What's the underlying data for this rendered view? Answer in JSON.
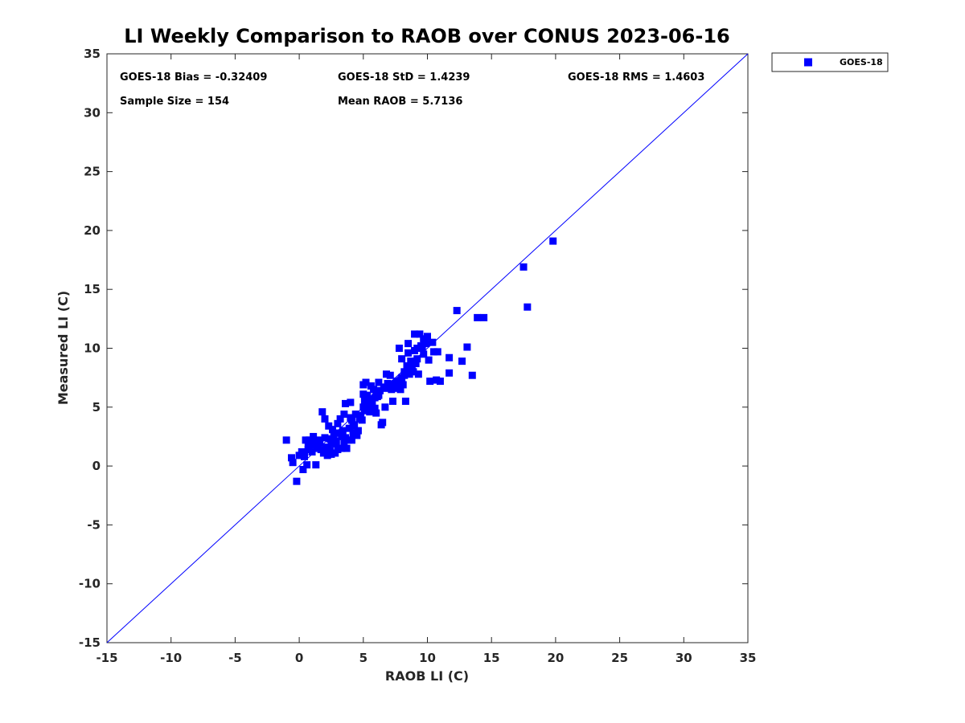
{
  "chart_data": {
    "type": "scatter",
    "title": "LI Weekly Comparison to RAOB over CONUS 2023-06-16",
    "xlabel": "RAOB LI (C)",
    "ylabel": "Measured LI (C)",
    "xlim": [
      -15,
      35
    ],
    "ylim": [
      -15,
      35
    ],
    "xticks": [
      -15,
      -10,
      -5,
      0,
      5,
      10,
      15,
      20,
      25,
      30,
      35
    ],
    "yticks": [
      -15,
      -10,
      -5,
      0,
      5,
      10,
      15,
      20,
      25,
      30,
      35
    ],
    "grid": false,
    "legend": {
      "position": "outside-top-right",
      "entries": [
        "GOES-18"
      ]
    },
    "reference_line": {
      "name": "1:1 line",
      "from": [
        -15,
        -15
      ],
      "to": [
        35,
        35
      ]
    },
    "annotations": [
      "GOES-18 Bias = -0.32409",
      "GOES-18 StD = 1.4239",
      "GOES-18 RMS = 1.4603",
      "Sample Size = 154",
      "Mean RAOB = 5.7136"
    ],
    "series": [
      {
        "name": "GOES-18",
        "color": "#0000ff",
        "marker": "square",
        "points": [
          [
            -1.0,
            2.2
          ],
          [
            -0.6,
            0.7
          ],
          [
            -0.5,
            0.3
          ],
          [
            -0.2,
            -1.3
          ],
          [
            0.0,
            0.9
          ],
          [
            0.2,
            1.2
          ],
          [
            0.3,
            -0.3
          ],
          [
            0.4,
            0.8
          ],
          [
            0.5,
            2.2
          ],
          [
            0.6,
            0.1
          ],
          [
            0.7,
            1.4
          ],
          [
            0.8,
            2.2
          ],
          [
            0.9,
            1.8
          ],
          [
            1.1,
            2.5
          ],
          [
            1.2,
            2.0
          ],
          [
            1.3,
            0.1
          ],
          [
            1.5,
            2.2
          ],
          [
            1.7,
            1.4
          ],
          [
            1.8,
            4.6
          ],
          [
            1.9,
            1.1
          ],
          [
            2.0,
            2.4
          ],
          [
            2.0,
            4.0
          ],
          [
            2.1,
            1.6
          ],
          [
            2.2,
            0.9
          ],
          [
            2.3,
            3.4
          ],
          [
            2.4,
            1.3
          ],
          [
            2.5,
            1.9
          ],
          [
            2.6,
            3.1
          ],
          [
            2.7,
            2.6
          ],
          [
            2.8,
            1.1
          ],
          [
            2.9,
            1.9
          ],
          [
            3.0,
            1.4
          ],
          [
            3.1,
            2.8
          ],
          [
            3.2,
            4.0
          ],
          [
            3.3,
            1.5
          ],
          [
            3.4,
            3.0
          ],
          [
            3.5,
            1.9
          ],
          [
            3.5,
            4.4
          ],
          [
            3.6,
            5.3
          ],
          [
            3.7,
            1.5
          ],
          [
            3.8,
            2.2
          ],
          [
            3.9,
            3.2
          ],
          [
            4.0,
            4.1
          ],
          [
            4.0,
            5.4
          ],
          [
            4.1,
            3.9
          ],
          [
            4.2,
            2.8
          ],
          [
            4.3,
            3.4
          ],
          [
            4.4,
            4.4
          ],
          [
            4.5,
            2.6
          ],
          [
            4.6,
            3.0
          ],
          [
            4.8,
            4.3
          ],
          [
            4.9,
            3.9
          ],
          [
            5.0,
            5.0
          ],
          [
            5.0,
            6.9
          ],
          [
            5.0,
            6.1
          ],
          [
            5.1,
            4.7
          ],
          [
            5.2,
            7.1
          ],
          [
            5.3,
            4.9
          ],
          [
            5.4,
            5.3
          ],
          [
            5.5,
            5.4
          ],
          [
            5.5,
            4.6
          ],
          [
            5.6,
            6.8
          ],
          [
            5.7,
            5.7
          ],
          [
            5.8,
            6.5
          ],
          [
            5.9,
            4.9
          ],
          [
            6.0,
            6.2
          ],
          [
            6.0,
            4.5
          ],
          [
            6.1,
            5.9
          ],
          [
            6.2,
            7.1
          ],
          [
            6.3,
            6.4
          ],
          [
            6.4,
            3.5
          ],
          [
            6.5,
            3.7
          ],
          [
            6.7,
            5.0
          ],
          [
            6.8,
            6.6
          ],
          [
            6.8,
            7.8
          ],
          [
            7.0,
            6.9
          ],
          [
            7.1,
            7.7
          ],
          [
            7.2,
            6.5
          ],
          [
            7.3,
            5.5
          ],
          [
            7.5,
            7.0
          ],
          [
            7.7,
            6.6
          ],
          [
            7.8,
            10.0
          ],
          [
            7.9,
            7.3
          ],
          [
            8.0,
            9.1
          ],
          [
            8.0,
            7.5
          ],
          [
            8.1,
            6.9
          ],
          [
            8.2,
            7.7
          ],
          [
            8.3,
            5.5
          ],
          [
            8.4,
            8.5
          ],
          [
            8.5,
            10.4
          ],
          [
            8.5,
            9.6
          ],
          [
            8.6,
            8.1
          ],
          [
            8.8,
            8.5
          ],
          [
            8.9,
            8.0
          ],
          [
            9.0,
            11.2
          ],
          [
            9.1,
            8.7
          ],
          [
            9.2,
            10.0
          ],
          [
            9.2,
            9.1
          ],
          [
            9.3,
            7.8
          ],
          [
            9.4,
            11.2
          ],
          [
            9.6,
            10.1
          ],
          [
            9.7,
            9.5
          ],
          [
            9.8,
            10.6
          ],
          [
            9.9,
            10.4
          ],
          [
            10.0,
            11.0
          ],
          [
            10.1,
            9.0
          ],
          [
            10.2,
            7.2
          ],
          [
            10.4,
            10.5
          ],
          [
            10.5,
            9.7
          ],
          [
            10.7,
            7.3
          ],
          [
            10.8,
            9.7
          ],
          [
            11.0,
            7.2
          ],
          [
            11.7,
            9.2
          ],
          [
            11.7,
            7.9
          ],
          [
            12.3,
            13.2
          ],
          [
            12.7,
            8.9
          ],
          [
            13.1,
            10.1
          ],
          [
            13.5,
            7.7
          ],
          [
            13.9,
            12.6
          ],
          [
            14.4,
            12.6
          ],
          [
            17.5,
            16.9
          ],
          [
            17.8,
            13.5
          ],
          [
            19.8,
            19.1
          ],
          [
            0.4,
            1.0
          ],
          [
            0.7,
            1.8
          ],
          [
            1.4,
            1.5
          ],
          [
            2.4,
            2.3
          ],
          [
            2.8,
            2.1
          ],
          [
            3.0,
            3.6
          ],
          [
            3.6,
            2.4
          ],
          [
            4.2,
            3.5
          ],
          [
            5.3,
            6.0
          ],
          [
            5.7,
            5.1
          ],
          [
            6.2,
            6.0
          ],
          [
            6.9,
            7.0
          ],
          [
            7.6,
            7.2
          ],
          [
            8.2,
            8.0
          ],
          [
            8.7,
            8.9
          ],
          [
            9.5,
            10.2
          ],
          [
            1.6,
            2.0
          ],
          [
            2.2,
            1.4
          ],
          [
            3.3,
            2.5
          ],
          [
            4.7,
            4.0
          ],
          [
            5.1,
            5.6
          ],
          [
            6.6,
            6.7
          ],
          [
            7.4,
            6.8
          ],
          [
            8.6,
            7.8
          ],
          [
            9.0,
            9.8
          ],
          [
            1.0,
            1.2
          ],
          [
            2.5,
            1.0
          ],
          [
            4.1,
            2.2
          ],
          [
            5.9,
            5.8
          ],
          [
            7.9,
            6.5
          ],
          [
            9.7,
            10.8
          ]
        ]
      }
    ]
  }
}
